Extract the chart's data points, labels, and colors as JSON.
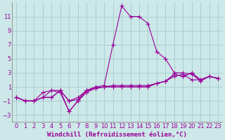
{
  "x": [
    0,
    1,
    2,
    3,
    4,
    5,
    6,
    7,
    8,
    9,
    10,
    11,
    12,
    13,
    14,
    15,
    16,
    17,
    18,
    19,
    20,
    21,
    22,
    23
  ],
  "series": [
    [
      -0.5,
      -1.0,
      -1.0,
      -0.5,
      -0.5,
      0.5,
      -1.0,
      -0.8,
      0.5,
      0.8,
      1.0,
      1.2,
      1.2,
      1.2,
      1.2,
      1.2,
      1.5,
      1.8,
      2.5,
      2.8,
      2.0,
      2.0,
      2.5,
      2.2
    ],
    [
      -0.5,
      -1.0,
      -1.0,
      -0.5,
      0.5,
      0.5,
      -1.0,
      -0.5,
      0.5,
      0.8,
      1.0,
      1.0,
      1.0,
      1.0,
      1.0,
      1.0,
      1.5,
      1.8,
      2.8,
      2.5,
      3.0,
      2.0,
      2.5,
      2.2
    ],
    [
      -0.5,
      -1.0,
      -1.0,
      0.2,
      0.5,
      0.2,
      -2.5,
      -1.0,
      0.2,
      0.8,
      1.0,
      1.0,
      1.0,
      1.0,
      1.0,
      1.0,
      1.5,
      1.8,
      2.8,
      2.5,
      3.0,
      2.0,
      2.5,
      2.2
    ],
    [
      -0.5,
      -1.0,
      -1.0,
      -0.5,
      -0.5,
      0.5,
      -2.5,
      -1.0,
      0.5,
      1.0,
      1.2,
      7.0,
      12.5,
      11.0,
      11.0,
      10.0,
      6.0,
      5.0,
      3.0,
      3.0,
      2.8,
      1.8,
      2.5,
      2.2
    ]
  ],
  "line_color": "#990099",
  "marker": "+",
  "marker_size": 4,
  "background_color": "#cce8e8",
  "grid_color": "#aacfcf",
  "xlabel": "Windchill (Refroidissement éolien,°C)",
  "ylabel": "",
  "xlim": [
    -0.5,
    23.5
  ],
  "ylim": [
    -4,
    13
  ],
  "yticks": [
    -3,
    -1,
    1,
    3,
    5,
    7,
    9,
    11
  ],
  "xticks": [
    0,
    1,
    2,
    3,
    4,
    5,
    6,
    7,
    8,
    9,
    10,
    11,
    12,
    13,
    14,
    15,
    16,
    17,
    18,
    19,
    20,
    21,
    22,
    23
  ],
  "title_color": "#990099",
  "axis_color": "#888888",
  "tick_fontsize": 6,
  "xlabel_fontsize": 6.5
}
